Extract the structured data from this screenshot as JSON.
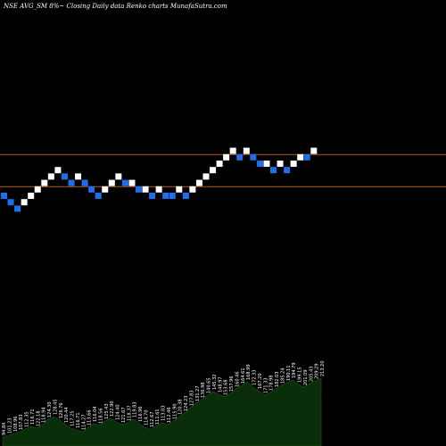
{
  "header": {
    "symbol": "NSE AVG_SM 8%~",
    "caption": "Closing Daily data  Renko  charts MunafaSutra.com"
  },
  "chart_data": {
    "type": "renko",
    "title": "NSE AVG_SM 8%~ Closing Daily data Renko charts MunafaSutra.com",
    "colors": {
      "up": "#ffffff",
      "down": "#1e6fe8",
      "background": "#000000",
      "line": "#b4581e",
      "volume": "#0a2e0a"
    },
    "grid": false,
    "bricks": [
      {
        "dir": "down",
        "level": 0
      },
      {
        "dir": "down",
        "level": -1
      },
      {
        "dir": "down",
        "level": -2
      },
      {
        "dir": "up",
        "level": -1
      },
      {
        "dir": "up",
        "level": 0
      },
      {
        "dir": "up",
        "level": 1
      },
      {
        "dir": "up",
        "level": 2
      },
      {
        "dir": "up",
        "level": 3
      },
      {
        "dir": "up",
        "level": 4
      },
      {
        "dir": "down",
        "level": 3
      },
      {
        "dir": "down",
        "level": 2
      },
      {
        "dir": "up",
        "level": 3
      },
      {
        "dir": "down",
        "level": 2
      },
      {
        "dir": "down",
        "level": 1
      },
      {
        "dir": "down",
        "level": 0
      },
      {
        "dir": "up",
        "level": 1
      },
      {
        "dir": "up",
        "level": 2
      },
      {
        "dir": "up",
        "level": 3
      },
      {
        "dir": "down",
        "level": 2
      },
      {
        "dir": "up",
        "level": 2
      },
      {
        "dir": "down",
        "level": 1
      },
      {
        "dir": "up",
        "level": 1
      },
      {
        "dir": "down",
        "level": 0
      },
      {
        "dir": "up",
        "level": 1
      },
      {
        "dir": "down",
        "level": 0
      },
      {
        "dir": "down",
        "level": 0
      },
      {
        "dir": "up",
        "level": 1
      },
      {
        "dir": "down",
        "level": 0
      },
      {
        "dir": "up",
        "level": 1
      },
      {
        "dir": "up",
        "level": 2
      },
      {
        "dir": "up",
        "level": 3
      },
      {
        "dir": "up",
        "level": 4
      },
      {
        "dir": "up",
        "level": 5
      },
      {
        "dir": "up",
        "level": 6
      },
      {
        "dir": "up",
        "level": 7
      },
      {
        "dir": "down",
        "level": 6
      },
      {
        "dir": "up",
        "level": 7
      },
      {
        "dir": "down",
        "level": 6
      },
      {
        "dir": "down",
        "level": 5
      },
      {
        "dir": "up",
        "level": 5
      },
      {
        "dir": "down",
        "level": 4
      },
      {
        "dir": "up",
        "level": 5
      },
      {
        "dir": "down",
        "level": 4
      },
      {
        "dir": "up",
        "level": 5
      },
      {
        "dir": "up",
        "level": 6
      },
      {
        "dir": "down",
        "level": 6
      },
      {
        "dir": "up",
        "level": 7
      }
    ],
    "reference_lines": [
      6.5,
      1.5
    ],
    "volume_labels": [
      "94.84",
      "101.23",
      "108.96",
      "107.83",
      "112.35",
      "116.71",
      "122.18",
      "118.94",
      "124.30",
      "128.45",
      "126.76",
      "120.44",
      "117.25",
      "116.71",
      "114.27",
      "113.66",
      "116.04",
      "118.56",
      "125.43",
      "122.90",
      "124.40",
      "121.67",
      "118.37",
      "119.83",
      "116.96",
      "114.70",
      "112.67",
      "111.61",
      "113.03",
      "112.46",
      "115.90",
      "120.38",
      "124.23",
      "127.83",
      "131.27",
      "136.98",
      "140.65",
      "145.32",
      "148.97",
      "153.68",
      "157.96",
      "160.46",
      "164.61",
      "168.99",
      "172.33",
      "167.20",
      "171.33",
      "178.98",
      "182.03",
      "185.24",
      "190.11",
      "194.79",
      "199.15",
      "201.09",
      "205.43",
      "209.29",
      "213.20"
    ],
    "volume_values": [
      10,
      12,
      14,
      16,
      19,
      22,
      20,
      24,
      30,
      33,
      29,
      24,
      20,
      18,
      16,
      21,
      25,
      23,
      28,
      31,
      27,
      24,
      26,
      30,
      25,
      21,
      19,
      22,
      26,
      24,
      28,
      33,
      37,
      43,
      48,
      52,
      57,
      61,
      58,
      55,
      59,
      64,
      68,
      72,
      66,
      62,
      57,
      60,
      64,
      68,
      71,
      74,
      69,
      66,
      70,
      73,
      76
    ]
  }
}
